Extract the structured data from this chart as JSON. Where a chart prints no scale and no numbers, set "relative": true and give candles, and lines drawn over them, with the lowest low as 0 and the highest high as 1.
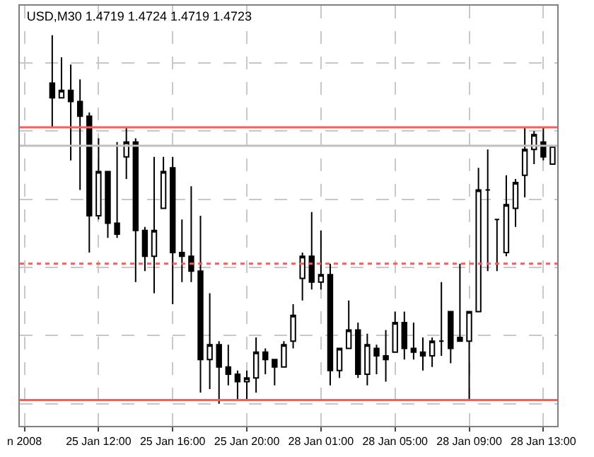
{
  "chart_data": {
    "type": "candlestick",
    "title": "USD,M30 1.4719 1.4724 1.4719 1.4723",
    "relative": true,
    "categories": [
      "n 2008",
      null,
      null,
      null,
      null,
      null,
      null,
      null,
      "25 Jan 12:00",
      null,
      null,
      null,
      null,
      null,
      null,
      null,
      "25 Jan 16:00",
      null,
      null,
      null,
      null,
      null,
      null,
      null,
      "25 Jan 20:00",
      null,
      null,
      null,
      null,
      null,
      null,
      null,
      "28 Jan 01:00",
      null,
      null,
      null,
      null,
      null,
      null,
      null,
      "28 Jan 05:00",
      null,
      null,
      null,
      null,
      null,
      null,
      null,
      "28 Jan 09:00",
      null,
      null,
      null,
      null,
      null,
      null,
      null,
      "28 Jan 13:00",
      null
    ],
    "color": "#000000",
    "ohlc": [
      null,
      null,
      null,
      [
        0.87,
        1.0,
        0.75,
        0.83
      ],
      [
        0.83,
        0.94,
        0.83,
        0.85
      ],
      [
        0.85,
        0.92,
        0.66,
        0.82
      ],
      [
        0.82,
        0.88,
        0.58,
        0.78
      ],
      [
        0.78,
        0.79,
        0.41,
        0.51
      ],
      [
        0.51,
        0.72,
        0.5,
        0.63
      ],
      [
        0.63,
        0.63,
        0.45,
        0.49
      ],
      [
        0.49,
        0.71,
        0.45,
        0.46
      ],
      [
        0.67,
        0.75,
        0.61,
        0.71
      ],
      [
        0.71,
        0.72,
        0.33,
        0.47
      ],
      [
        0.47,
        0.48,
        0.36,
        0.4
      ],
      [
        0.4,
        0.67,
        0.3,
        0.47
      ],
      [
        0.53,
        0.67,
        0.53,
        0.63
      ],
      [
        0.64,
        0.67,
        0.27,
        0.41
      ],
      [
        0.41,
        0.5,
        0.33,
        0.4
      ],
      [
        0.4,
        0.59,
        0.33,
        0.36
      ],
      [
        0.36,
        0.51,
        0.03,
        0.12
      ],
      [
        0.12,
        0.3,
        0.04,
        0.16
      ],
      [
        0.16,
        0.17,
        0.0,
        0.1
      ],
      [
        0.1,
        0.16,
        0.05,
        0.08
      ],
      [
        0.08,
        0.09,
        0.01,
        0.06
      ],
      [
        0.06,
        0.09,
        0.01,
        0.07
      ],
      [
        0.07,
        0.18,
        0.03,
        0.14
      ],
      [
        0.14,
        0.15,
        0.08,
        0.12
      ],
      [
        0.12,
        0.12,
        0.05,
        0.1
      ],
      [
        0.1,
        0.17,
        0.1,
        0.16
      ],
      [
        0.17,
        0.27,
        0.15,
        0.24
      ],
      [
        0.34,
        0.41,
        0.28,
        0.4
      ],
      [
        0.4,
        0.52,
        0.31,
        0.33
      ],
      [
        0.33,
        0.47,
        0.31,
        0.35
      ],
      [
        0.35,
        0.38,
        0.05,
        0.09
      ],
      [
        0.09,
        0.15,
        0.07,
        0.15
      ],
      [
        0.15,
        0.28,
        0.15,
        0.2
      ],
      [
        0.2,
        0.22,
        0.07,
        0.08
      ],
      [
        0.08,
        0.19,
        0.05,
        0.16
      ],
      [
        0.15,
        0.16,
        0.08,
        0.13
      ],
      [
        0.13,
        0.2,
        0.06,
        0.12
      ],
      [
        0.14,
        0.25,
        0.14,
        0.22
      ],
      [
        0.22,
        0.25,
        0.12,
        0.15
      ],
      [
        0.15,
        0.22,
        0.12,
        0.14
      ],
      [
        0.14,
        0.18,
        0.09,
        0.13
      ],
      [
        0.13,
        0.18,
        0.1,
        0.17
      ],
      [
        0.17,
        0.33,
        0.13,
        0.17
      ],
      [
        0.25,
        0.25,
        0.11,
        0.15
      ],
      [
        0.18,
        0.38,
        0.17,
        0.17
      ],
      [
        0.17,
        0.25,
        0.01,
        0.25
      ],
      [
        0.25,
        0.64,
        0.25,
        0.58
      ],
      [
        0.58,
        0.69,
        0.36,
        0.58
      ],
      [
        0.5,
        0.5,
        0.36,
        0.5
      ],
      [
        0.41,
        0.62,
        0.4,
        0.54
      ],
      [
        0.53,
        0.61,
        0.48,
        0.6
      ],
      [
        0.62,
        0.75,
        0.56,
        0.69
      ],
      [
        0.69,
        0.74,
        0.65,
        0.73
      ],
      [
        0.71,
        0.75,
        0.66,
        0.67
      ],
      [
        0.65,
        0.7,
        0.65,
        0.7
      ]
    ],
    "ref_lines": [
      {
        "axis": "y",
        "value": 0.75,
        "color": "#ff5a5a",
        "line_style": "solid"
      },
      {
        "axis": "y",
        "value": 0.7,
        "color": "#c0c0c0",
        "line_style": "solid"
      },
      {
        "axis": "y",
        "value": 0.38,
        "color": "#ff5a5a",
        "line_style": "dotted"
      },
      {
        "axis": "y",
        "value": 0.01,
        "color": "#ff5a5a",
        "line_style": "solid"
      }
    ],
    "grid": true,
    "legend": false
  }
}
